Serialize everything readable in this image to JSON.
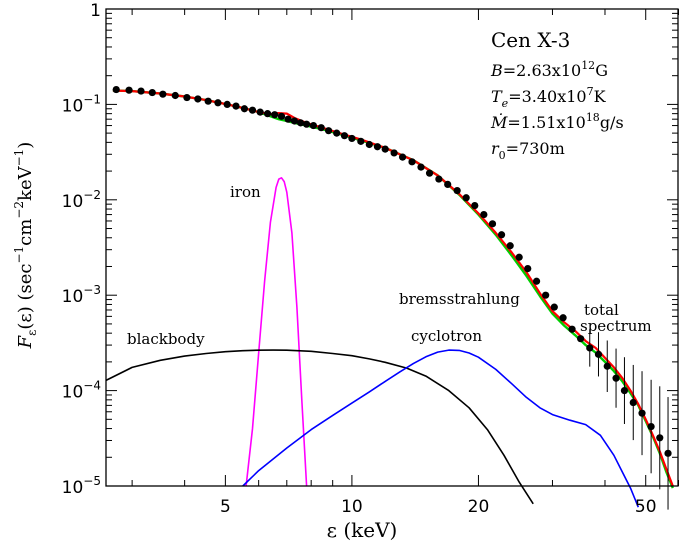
{
  "chart_data": {
    "type": "line",
    "title": "Cen X-3",
    "xlabel": "ε (keV)",
    "ylabel": "F_ε(ε) (sec⁻¹cm⁻²keV⁻¹)",
    "xscale": "log",
    "yscale": "log",
    "xlim": [
      2.6,
      60
    ],
    "ylim": [
      1e-05,
      1
    ],
    "x_ticks": [
      5,
      10,
      20,
      50
    ],
    "y_ticks": [
      1e-05,
      0.0001,
      0.001,
      0.01,
      0.1,
      1
    ],
    "y_tick_labels": [
      {
        "base": "10",
        "exp": "-5"
      },
      {
        "base": "10",
        "exp": "-4"
      },
      {
        "base": "10",
        "exp": "-3"
      },
      {
        "base": "10",
        "exp": "-2"
      },
      {
        "base": "10",
        "exp": "-1"
      },
      {
        "base": "1",
        "exp": ""
      }
    ],
    "parameters": {
      "B": {
        "prefix": "B",
        "value": "=2.63x10",
        "exp": "12",
        "unit": "G"
      },
      "Te": {
        "prefix": "T",
        "sub": "e",
        "value": "=3.40x10",
        "exp": "7",
        "unit": "K"
      },
      "Mdot": {
        "prefix": "Ṁ",
        "value": "=1.51x10",
        "exp": "18",
        "unit": "g/s"
      },
      "r0": {
        "prefix": "r",
        "sub": "0",
        "value": "=730m"
      }
    },
    "annotations": {
      "iron": "iron",
      "blackbody": "blackbody",
      "cyclotron": "cyclotron",
      "bremsstrahlung": "bremsstrahlung",
      "total_1": "total",
      "total_2": "spectrum"
    },
    "series": [
      {
        "name": "total spectrum",
        "color": "#ff0000",
        "x": [
          2.7,
          3.0,
          3.5,
          4.0,
          4.5,
          5.0,
          5.5,
          6.0,
          6.4,
          6.7,
          7.0,
          7.3,
          7.8,
          8.5,
          9.5,
          10.5,
          12,
          14,
          16,
          18,
          20,
          22,
          24,
          26,
          28,
          30,
          32,
          34,
          36,
          38,
          40,
          42,
          44,
          46,
          48,
          50,
          52,
          54,
          56,
          58
        ],
        "y": [
          0.14,
          0.138,
          0.13,
          0.121,
          0.111,
          0.101,
          0.092,
          0.083,
          0.079,
          0.081,
          0.08,
          0.072,
          0.064,
          0.057,
          0.049,
          0.043,
          0.035,
          0.026,
          0.018,
          0.0115,
          0.0072,
          0.0045,
          0.0028,
          0.00175,
          0.00105,
          0.00068,
          0.00052,
          0.00042,
          0.00033,
          0.00028,
          0.00022,
          0.000175,
          0.000135,
          0.0001,
          7.2e-05,
          5e-05,
          3.4e-05,
          2.3e-05,
          1.5e-05,
          1e-05
        ]
      },
      {
        "name": "model (green)",
        "color": "#00cc00",
        "x": [
          2.7,
          3.0,
          3.5,
          4.0,
          4.5,
          5.0,
          5.5,
          6.0,
          6.4,
          6.7,
          7.0,
          7.3,
          7.8,
          8.5,
          9.5,
          10.5,
          12,
          14,
          16,
          18,
          20,
          22,
          24,
          26,
          28,
          30,
          32,
          34,
          36,
          38,
          40,
          42,
          44,
          46,
          48,
          50,
          52,
          54,
          56,
          58
        ],
        "y": [
          0.14,
          0.138,
          0.13,
          0.121,
          0.111,
          0.101,
          0.092,
          0.083,
          0.075,
          0.07,
          0.067,
          0.064,
          0.06,
          0.055,
          0.048,
          0.042,
          0.035,
          0.026,
          0.018,
          0.0113,
          0.007,
          0.0043,
          0.0026,
          0.0016,
          0.00098,
          0.00064,
          0.00048,
          0.00038,
          0.0003,
          0.00025,
          0.0002,
          0.00016,
          0.000125,
          9.4e-05,
          7e-05,
          4.8e-05,
          3.3e-05,
          2.2e-05,
          1.4e-05,
          9.5e-06
        ]
      },
      {
        "name": "iron",
        "color": "#ff00ff",
        "x": [
          5.6,
          5.8,
          6.0,
          6.2,
          6.4,
          6.6,
          6.7,
          6.8,
          6.9,
          7.0,
          7.2,
          7.4,
          7.6,
          7.8
        ],
        "y": [
          1e-05,
          4e-05,
          0.00025,
          0.0014,
          0.0058,
          0.0135,
          0.0165,
          0.017,
          0.0155,
          0.012,
          0.0045,
          0.00075,
          8e-05,
          1e-05
        ]
      },
      {
        "name": "blackbody",
        "color": "#000000",
        "x": [
          2.6,
          3.0,
          3.5,
          4.0,
          4.5,
          5.0,
          5.5,
          6.0,
          6.5,
          7.0,
          8.0,
          9.0,
          10,
          11,
          12,
          13.5,
          15,
          17,
          19,
          21,
          23,
          25,
          27
        ],
        "y": [
          0.000128,
          0.000175,
          0.000208,
          0.00023,
          0.000245,
          0.000256,
          0.000262,
          0.000265,
          0.000266,
          0.000265,
          0.000258,
          0.000245,
          0.000232,
          0.000215,
          0.000198,
          0.000172,
          0.000142,
          0.0001,
          6.6e-05,
          3.9e-05,
          2.1e-05,
          1.1e-05,
          6.5e-06
        ]
      },
      {
        "name": "cyclotron",
        "color": "#0000ff",
        "x": [
          5.5,
          6,
          7,
          8,
          9,
          10,
          11,
          12,
          13,
          14,
          15,
          16,
          17,
          18,
          19,
          20,
          22,
          24,
          26,
          28,
          30,
          33,
          36,
          39,
          42,
          44,
          46,
          48
        ],
        "y": [
          1e-05,
          1.45e-05,
          2.5e-05,
          3.9e-05,
          5.5e-05,
          7.4e-05,
          9.7e-05,
          0.000125,
          0.000157,
          0.000192,
          0.000226,
          0.000253,
          0.000266,
          0.000264,
          0.000248,
          0.000224,
          0.000167,
          0.000118,
          8.5e-05,
          6.6e-05,
          5.6e-05,
          4.9e-05,
          4.4e-05,
          3.4e-05,
          2.1e-05,
          1.4e-05,
          9.5e-06,
          6e-06
        ]
      },
      {
        "name": "data",
        "color": "#000000",
        "type": "scatter",
        "x": [
          2.75,
          2.95,
          3.15,
          3.35,
          3.55,
          3.8,
          4.05,
          4.3,
          4.55,
          4.8,
          5.05,
          5.3,
          5.55,
          5.8,
          6.05,
          6.3,
          6.55,
          6.8,
          7.05,
          7.3,
          7.55,
          7.8,
          8.1,
          8.45,
          8.8,
          9.2,
          9.6,
          10.0,
          10.5,
          11.0,
          11.5,
          12.0,
          12.6,
          13.2,
          13.9,
          14.6,
          15.3,
          16.1,
          16.9,
          17.8,
          18.7,
          19.6,
          20.6,
          21.6,
          22.7,
          23.8,
          25.0,
          26.2,
          27.5,
          28.9,
          30.3,
          31.8,
          33.4,
          35.0,
          36.8,
          38.6,
          40.5,
          42.5,
          44.5,
          46.7,
          49.0,
          51.5,
          54.0,
          56.5
        ],
        "y": [
          0.143,
          0.141,
          0.138,
          0.133,
          0.128,
          0.124,
          0.118,
          0.114,
          0.108,
          0.104,
          0.1,
          0.096,
          0.09,
          0.087,
          0.083,
          0.08,
          0.078,
          0.075,
          0.07,
          0.067,
          0.064,
          0.062,
          0.06,
          0.057,
          0.053,
          0.05,
          0.047,
          0.044,
          0.041,
          0.038,
          0.036,
          0.034,
          0.031,
          0.028,
          0.025,
          0.022,
          0.019,
          0.0165,
          0.0145,
          0.0125,
          0.0105,
          0.0087,
          0.007,
          0.0056,
          0.0043,
          0.0033,
          0.0025,
          0.0019,
          0.0014,
          0.001,
          0.00075,
          0.00058,
          0.00044,
          0.00035,
          0.00028,
          0.00024,
          0.00018,
          0.000135,
          0.0001,
          7.5e-05,
          5.8e-05,
          4.2e-05,
          3.2e-05,
          2.2e-05
        ]
      }
    ]
  }
}
